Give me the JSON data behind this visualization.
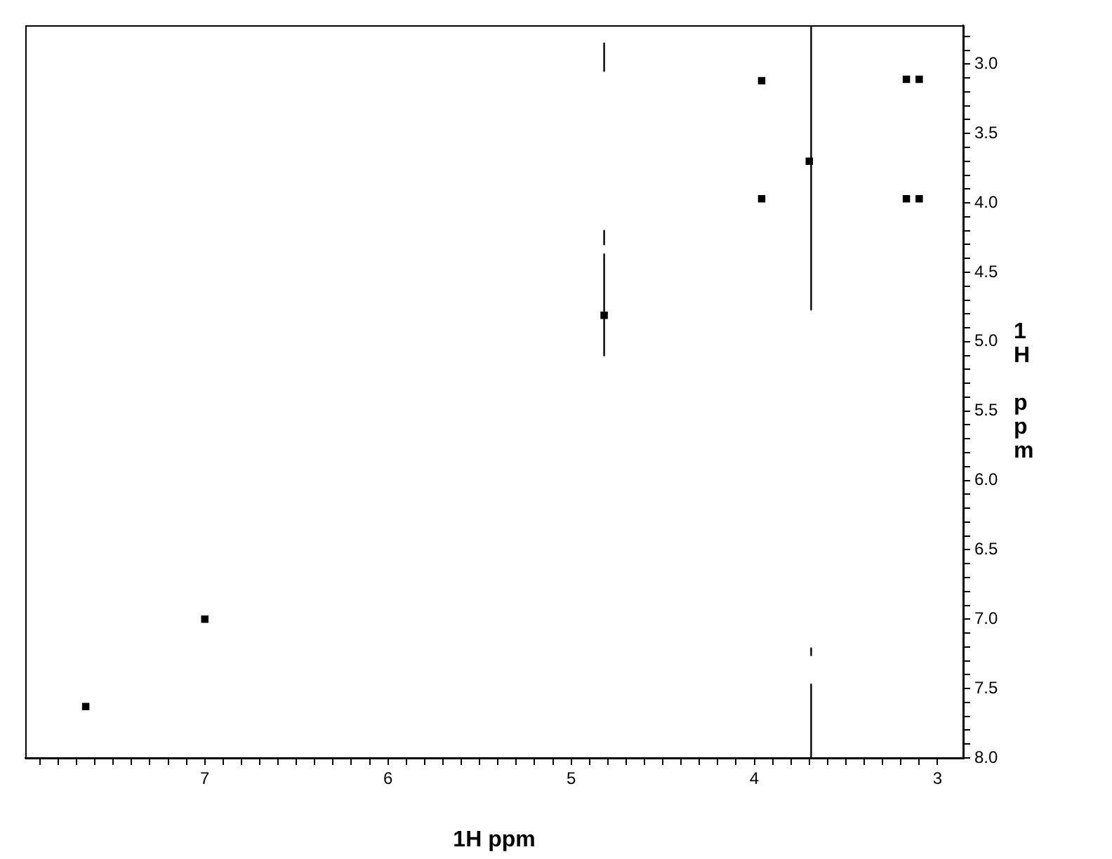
{
  "chart_data": {
    "type": "scatter",
    "xlabel": "1H ppm",
    "ylabel": "1H ppm",
    "marker": "square",
    "legend": false,
    "grid": false,
    "xlim": [
      7.98,
      2.86
    ],
    "ylim": [
      8.0,
      2.72
    ],
    "xticks": [
      3,
      {
        "value": 3.1,
        "label": null
      },
      {
        "value": 3.2,
        "label": null
      },
      {
        "value": 3.3,
        "label": null
      },
      {
        "value": 3.4,
        "label": null
      },
      {
        "value": 3.5,
        "label": null
      },
      {
        "value": 3.6,
        "label": null
      },
      {
        "value": 3.7,
        "label": null
      },
      {
        "value": 3.8,
        "label": null
      },
      {
        "value": 3.9,
        "label": null
      },
      4,
      {
        "value": 4.1,
        "label": null
      },
      {
        "value": 4.2,
        "label": null
      },
      {
        "value": 4.3,
        "label": null
      },
      {
        "value": 4.4,
        "label": null
      },
      {
        "value": 4.5,
        "label": null
      },
      {
        "value": 4.6,
        "label": null
      },
      {
        "value": 4.7,
        "label": null
      },
      {
        "value": 4.8,
        "label": null
      },
      {
        "value": 4.9,
        "label": null
      },
      5,
      {
        "value": 5.1,
        "label": null
      },
      {
        "value": 5.2,
        "label": null
      },
      {
        "value": 5.3,
        "label": null
      },
      {
        "value": 5.4,
        "label": null
      },
      {
        "value": 5.5,
        "label": null
      },
      {
        "value": 5.6,
        "label": null
      },
      {
        "value": 5.7,
        "label": null
      },
      {
        "value": 5.8,
        "label": null
      },
      {
        "value": 5.9,
        "label": null
      },
      6,
      {
        "value": 6.1,
        "label": null
      },
      {
        "value": 6.2,
        "label": null
      },
      {
        "value": 6.3,
        "label": null
      },
      {
        "value": 6.4,
        "label": null
      },
      {
        "value": 6.5,
        "label": null
      },
      {
        "value": 6.6,
        "label": null
      },
      {
        "value": 6.7,
        "label": null
      },
      {
        "value": 6.8,
        "label": null
      },
      {
        "value": 6.9,
        "label": null
      },
      7,
      {
        "value": 7.1,
        "label": null
      },
      {
        "value": 7.2,
        "label": null
      },
      {
        "value": 7.3,
        "label": null
      },
      {
        "value": 7.4,
        "label": null
      },
      {
        "value": 7.5,
        "label": null
      },
      {
        "value": 7.6,
        "label": null
      },
      {
        "value": 7.7,
        "label": null
      },
      {
        "value": 7.8,
        "label": null
      },
      {
        "value": 7.9,
        "label": null
      }
    ],
    "yticks": [
      {
        "value": 2.8,
        "label": null
      },
      {
        "value": 2.9,
        "label": null
      },
      {
        "value": 3.0,
        "label": "3.0"
      },
      {
        "value": 3.1,
        "label": null
      },
      {
        "value": 3.2,
        "label": null
      },
      {
        "value": 3.3,
        "label": null
      },
      {
        "value": 3.4,
        "label": null
      },
      {
        "value": 3.5,
        "label": "3.5"
      },
      {
        "value": 3.6,
        "label": null
      },
      {
        "value": 3.7,
        "label": null
      },
      {
        "value": 3.8,
        "label": null
      },
      {
        "value": 3.9,
        "label": null
      },
      {
        "value": 4.0,
        "label": "4.0"
      },
      {
        "value": 4.1,
        "label": null
      },
      {
        "value": 4.2,
        "label": null
      },
      {
        "value": 4.3,
        "label": null
      },
      {
        "value": 4.4,
        "label": null
      },
      {
        "value": 4.5,
        "label": "4.5"
      },
      {
        "value": 4.6,
        "label": null
      },
      {
        "value": 4.7,
        "label": null
      },
      {
        "value": 4.8,
        "label": null
      },
      {
        "value": 4.9,
        "label": null
      },
      {
        "value": 5.0,
        "label": "5.0"
      },
      {
        "value": 5.1,
        "label": null
      },
      {
        "value": 5.2,
        "label": null
      },
      {
        "value": 5.3,
        "label": null
      },
      {
        "value": 5.4,
        "label": null
      },
      {
        "value": 5.5,
        "label": "5.5"
      },
      {
        "value": 5.6,
        "label": null
      },
      {
        "value": 5.7,
        "label": null
      },
      {
        "value": 5.8,
        "label": null
      },
      {
        "value": 5.9,
        "label": null
      },
      {
        "value": 6.0,
        "label": "6.0"
      },
      {
        "value": 6.1,
        "label": null
      },
      {
        "value": 6.2,
        "label": null
      },
      {
        "value": 6.3,
        "label": null
      },
      {
        "value": 6.4,
        "label": null
      },
      {
        "value": 6.5,
        "label": "6.5"
      },
      {
        "value": 6.6,
        "label": null
      },
      {
        "value": 6.7,
        "label": null
      },
      {
        "value": 6.8,
        "label": null
      },
      {
        "value": 6.9,
        "label": null
      },
      {
        "value": 7.0,
        "label": "7.0"
      },
      {
        "value": 7.1,
        "label": null
      },
      {
        "value": 7.2,
        "label": null
      },
      {
        "value": 7.3,
        "label": null
      },
      {
        "value": 7.4,
        "label": null
      },
      {
        "value": 7.5,
        "label": "7.5"
      },
      {
        "value": 7.6,
        "label": null
      },
      {
        "value": 7.7,
        "label": null
      },
      {
        "value": 7.8,
        "label": null
      },
      {
        "value": 7.9,
        "label": null
      },
      {
        "value": 8.0,
        "label": "8.0"
      }
    ],
    "series": [
      {
        "color": "#000000",
        "x": [
          7.65,
          7.0,
          4.82,
          3.96,
          3.96,
          3.17,
          3.1,
          3.17,
          3.1,
          3.7
        ],
        "values": [
          7.63,
          7.0,
          4.81,
          3.12,
          3.97,
          3.11,
          3.11,
          3.97,
          3.97,
          3.7
        ]
      },
      {
        "type": "line",
        "color": "#000000",
        "marker": "none",
        "x": [
          3.69,
          3.69
        ],
        "values": [
          2.72,
          4.77
        ]
      },
      {
        "type": "line",
        "color": "#000000",
        "marker": "none",
        "x": [
          3.69,
          3.69
        ],
        "values": [
          7.47,
          8.0
        ]
      },
      {
        "type": "line",
        "color": "#000000",
        "marker": "none",
        "x": [
          3.69,
          3.69
        ],
        "values": [
          7.21,
          7.26
        ]
      },
      {
        "type": "line",
        "color": "#000000",
        "marker": "none",
        "x": [
          4.82,
          4.82
        ],
        "values": [
          2.85,
          3.05
        ]
      },
      {
        "type": "line",
        "color": "#000000",
        "marker": "none",
        "x": [
          4.82,
          4.82
        ],
        "values": [
          4.2,
          4.3
        ]
      },
      {
        "type": "line",
        "color": "#000000",
        "marker": "none",
        "x": [
          4.82,
          4.82
        ],
        "values": [
          4.37,
          5.1
        ]
      }
    ]
  }
}
